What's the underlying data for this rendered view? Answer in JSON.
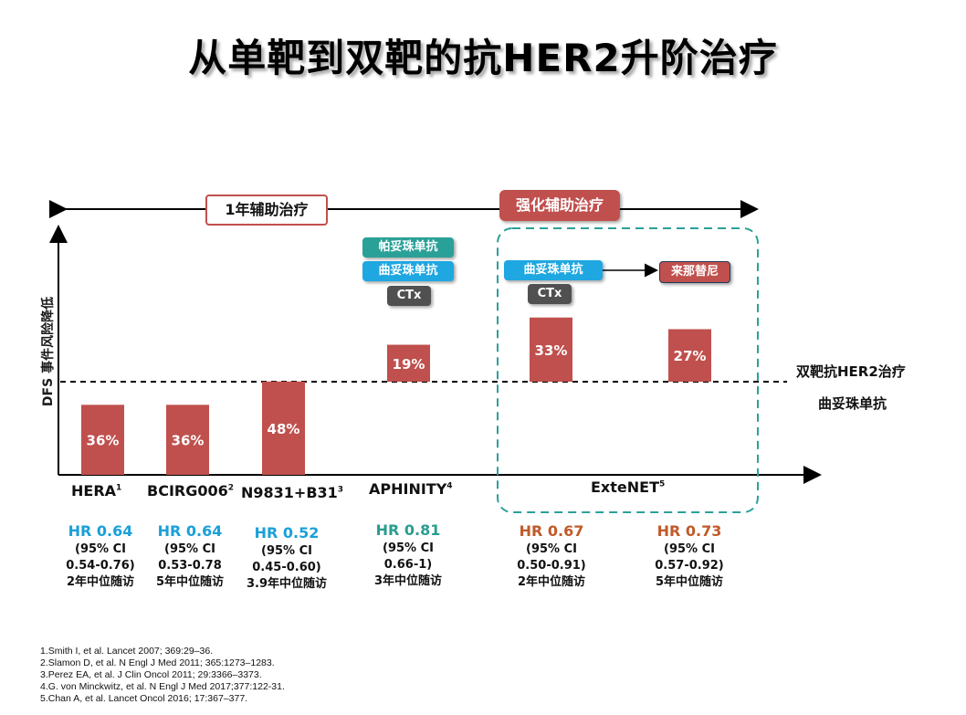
{
  "slide": {
    "title": "从单靶到双靶的抗HER2升阶治疗",
    "phase_1yr": "1年辅助治疗",
    "phase_intensified": "强化辅助治疗",
    "drugs": {
      "pertuzumab": "帕妥珠单抗",
      "trastuzumab_aphinity": "曲妥珠单抗",
      "ctx_aphinity": "CTx",
      "trastuzumab_extenet": "曲妥珠单抗",
      "ctx_extenet": "CTx",
      "neratinib": "来那替尼"
    },
    "right_labels": {
      "dual": "双靶抗HER2治疗",
      "single": "曲妥珠单抗"
    },
    "colors": {
      "bar": "#c0504d",
      "pertuzumab_box": "#2aa198",
      "trastuzumab_box": "#1ea7e1",
      "ctx_box": "#505050",
      "neratinib_box": "#c0504d",
      "dashed_box": "#2aa198"
    }
  },
  "chart_data": {
    "type": "bar",
    "ylabel": "DFS 事件风险降低",
    "baseline_note": "dashed line separates single-target (below) from dual-target (above)",
    "bars": [
      {
        "value_label": "36%",
        "segment": "single"
      },
      {
        "value_label": "36%",
        "segment": "single"
      },
      {
        "value_label": "48%",
        "segment": "single"
      },
      {
        "value_label": "19%",
        "segment": "dual"
      },
      {
        "value_label": "33%",
        "segment": "dual"
      },
      {
        "value_label": "27%",
        "segment": "dual"
      }
    ],
    "trials": [
      {
        "name": "HERA",
        "sup": "1"
      },
      {
        "name": "BCIRG006",
        "sup": "2"
      },
      {
        "name": "N9831+B31",
        "sup": "3"
      },
      {
        "name": "APHINITY",
        "sup": "4"
      },
      {
        "name": "ExteNET",
        "sup": "5"
      }
    ],
    "stats": [
      {
        "hr": "HR 0.64",
        "ci_label": "(95% CI",
        "ci": "0.54-0.76)",
        "followup": "2年中位随访"
      },
      {
        "hr": "HR 0.64",
        "ci_label": "(95% CI",
        "ci": "0.53-0.78",
        "followup": "5年中位随访"
      },
      {
        "hr": "HR 0.52",
        "ci_label": "(95% CI",
        "ci": "0.45-0.60)",
        "followup": "3.9年中位随访"
      },
      {
        "hr": "HR 0.81",
        "ci_label": "(95% CI",
        "ci": "0.66-1)",
        "followup": "3年中位随访"
      },
      {
        "hr": "HR 0.67",
        "ci_label": "(95% CI",
        "ci": "0.50-0.91)",
        "followup": "2年中位随访"
      },
      {
        "hr": "HR 0.73",
        "ci_label": "(95% CI",
        "ci": "0.57-0.92)",
        "followup": "5年中位随访"
      }
    ]
  },
  "references": [
    "1.Smith I, et al. Lancet 2007; 369:29–36.",
    "2.Slamon D, et al. N Engl J Med 2011; 365:1273–1283.",
    "3.Perez EA, et al. J Clin Oncol 2011; 29:3366–3373.",
    "4.G. von Minckwitz, et al. N Engl J Med 2017;377:122-31.",
    "5.Chan A, et al. Lancet Oncol 2016; 17:367–377."
  ]
}
